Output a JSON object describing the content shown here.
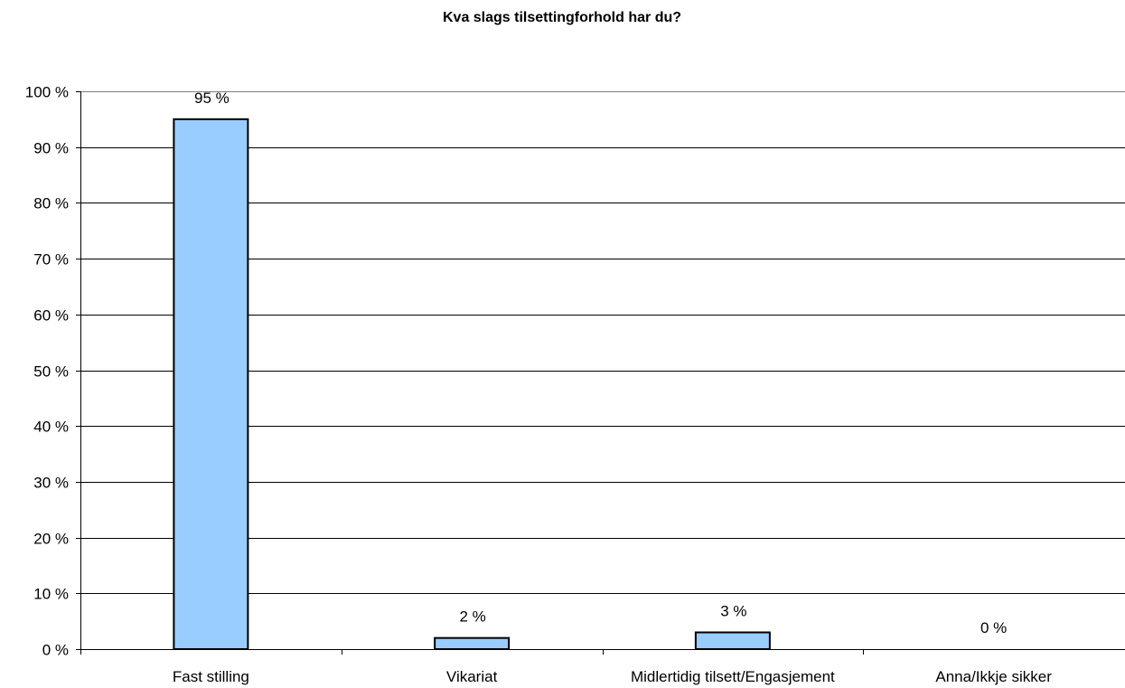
{
  "chart_data": {
    "type": "bar",
    "title": "Kva slags tilsettingforhold har du?",
    "categories": [
      "Fast stilling",
      "Vikariat",
      "Midlertidig tilsett/Engasjement",
      "Anna/Ikkje sikker"
    ],
    "values": [
      95,
      2,
      3,
      0
    ],
    "data_labels": [
      "95 %",
      "2 %",
      "3 %",
      "0 %"
    ],
    "ylim": [
      0,
      100
    ],
    "y_ticks": [
      0,
      10,
      20,
      30,
      40,
      50,
      60,
      70,
      80,
      90,
      100
    ],
    "y_tick_labels": [
      "0 %",
      "10 %",
      "20 %",
      "30 %",
      "40 %",
      "50 %",
      "60 %",
      "70 %",
      "80 %",
      "90 %",
      "100 %"
    ],
    "grid": true,
    "legend": "none",
    "colors": {
      "bar_fill": "#99ccff",
      "bar_stroke": "#000000",
      "grid": "#000000"
    }
  }
}
